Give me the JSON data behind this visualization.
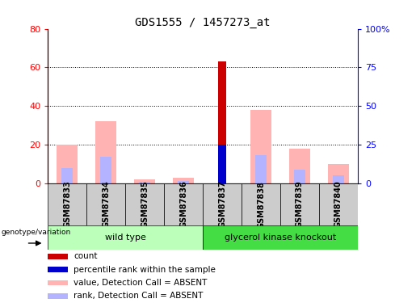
{
  "title": "GDS1555 / 1457273_at",
  "samples": [
    "GSM87833",
    "GSM87834",
    "GSM87835",
    "GSM87836",
    "GSM87837",
    "GSM87838",
    "GSM87839",
    "GSM87840"
  ],
  "value_absent": [
    20,
    32,
    2,
    3,
    0,
    38,
    18,
    10
  ],
  "rank_absent": [
    10,
    17,
    1,
    1.5,
    0,
    18,
    9,
    5
  ],
  "count": [
    0,
    0,
    0,
    0,
    63,
    0,
    0,
    0
  ],
  "percentile_rank": [
    0,
    0,
    0,
    0,
    25,
    0,
    0,
    0
  ],
  "ylim_left": [
    0,
    80
  ],
  "ylim_right": [
    0,
    100
  ],
  "yticks_left": [
    0,
    20,
    40,
    60,
    80
  ],
  "yticks_right": [
    0,
    25,
    50,
    75,
    100
  ],
  "ytick_labels_right": [
    "0",
    "25",
    "50",
    "75",
    "100%"
  ],
  "wild_type_label": "wild type",
  "knockout_label": "glycerol kinase knockout",
  "genotype_label": "genotype/variation",
  "color_count": "#cc0000",
  "color_percentile": "#0000cc",
  "color_value_absent": "#ffb3b3",
  "color_rank_absent": "#b3b3ff",
  "bg_color_plot": "#ffffff",
  "bg_color_labels": "#cccccc",
  "bg_color_wildtype": "#bbffbb",
  "bg_color_knockout": "#44dd44",
  "legend_items": [
    {
      "label": "count",
      "color": "#cc0000"
    },
    {
      "label": "percentile rank within the sample",
      "color": "#0000cc"
    },
    {
      "label": "value, Detection Call = ABSENT",
      "color": "#ffb3b3"
    },
    {
      "label": "rank, Detection Call = ABSENT",
      "color": "#b3b3ff"
    }
  ]
}
